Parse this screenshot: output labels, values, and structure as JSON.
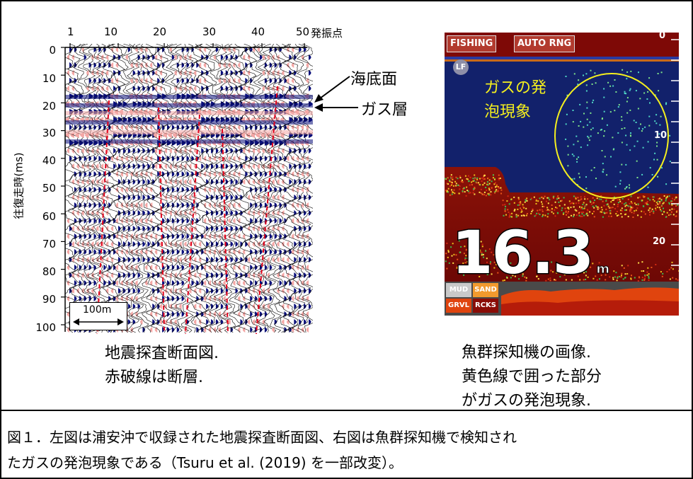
{
  "seismic": {
    "x_ticks": [
      "1",
      "10",
      "20",
      "30",
      "40",
      "50"
    ],
    "x_unit": "発振点",
    "y_ticks": [
      "0",
      "10",
      "20",
      "30",
      "40",
      "50",
      "60",
      "70",
      "80",
      "90",
      "100"
    ],
    "y_label": "往復走時(ms)",
    "scale_bar": "100m",
    "annotation_seafloor": "海底面",
    "annotation_gas_layer": "ガス層",
    "caption_line1": "地震探査断面図.",
    "caption_line2": "赤破線は断層."
  },
  "fishfinder": {
    "mode_label": "FISHING",
    "range_label": "AUTO RNG",
    "freq_badge": "LF",
    "depth_scale": [
      "0",
      "10",
      "20"
    ],
    "depth_value": "16.3",
    "depth_unit": "m",
    "annotation_line1": "ガスの発",
    "annotation_line2": "泡現象",
    "bottom_types": [
      "MUD",
      "SAND",
      "GRVL",
      "RCKS"
    ],
    "caption_line1": "魚群探知機の画像.",
    "caption_line2": "黄色線で囲った部分",
    "caption_line3": "がガスの発泡現象."
  },
  "figure_caption_line1": "図１．左図は浦安沖で収録された地震探査断面図、右図は魚群探知機で検知され",
  "figure_caption_line2": "たガスの発泡現象である（Tsuru et al. (2019) を一部改変）。",
  "colors": {
    "trace_blue": "#0a0f7a",
    "trace_pink": "#f4a7a5",
    "fault_red": "#e3001b",
    "fish_water": "#12216b",
    "fish_bottom": "#7a0a07",
    "fish_ellipse": "#f4ef1e",
    "fish_text": "#f4ef1e"
  }
}
